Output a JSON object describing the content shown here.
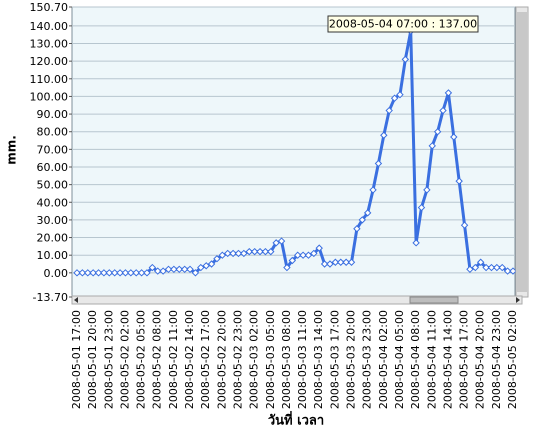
{
  "chart_data": {
    "type": "line",
    "annotation": "2008-05-04 07:00 : 137.00",
    "y_label": "mm.",
    "x_label": "วันที่ เวลา",
    "categories": [
      "2008-05-01 17:00",
      null,
      null,
      "2008-05-01 20:00",
      null,
      null,
      "2008-05-01 23:00",
      null,
      null,
      "2008-05-02 02:00",
      null,
      null,
      "2008-05-02 05:00",
      null,
      null,
      "2008-05-02 08:00",
      null,
      null,
      "2008-05-02 11:00",
      null,
      null,
      "2008-05-02 14:00",
      null,
      null,
      "2008-05-02 17:00",
      null,
      null,
      "2008-05-02 20:00",
      null,
      null,
      "2008-05-02 23:00",
      null,
      null,
      "2008-05-03 02:00",
      null,
      null,
      "2008-05-03 05:00",
      null,
      null,
      "2008-05-03 08:00",
      null,
      null,
      "2008-05-03 11:00",
      null,
      null,
      "2008-05-03 14:00",
      null,
      null,
      "2008-05-03 17:00",
      null,
      null,
      "2008-05-03 20:00",
      null,
      null,
      "2008-05-03 23:00",
      null,
      null,
      "2008-05-04 02:00",
      null,
      null,
      "2008-05-04 05:00",
      null,
      null,
      "2008-05-04 08:00",
      null,
      null,
      "2008-05-04 11:00",
      null,
      null,
      "2008-05-04 14:00",
      null,
      null,
      "2008-05-04 17:00",
      null,
      null,
      "2008-05-04 20:00",
      null,
      null,
      "2008-05-04 23:00",
      null,
      null,
      "2008-05-05 02:00"
    ],
    "series": [
      {
        "color": "#3a6fe0",
        "values": [
          0,
          0,
          0,
          0,
          0,
          0,
          0,
          0,
          0,
          0,
          0,
          0,
          0,
          0,
          3,
          1,
          1,
          2,
          2,
          2,
          2,
          2,
          0,
          3,
          4,
          5,
          8,
          10,
          11,
          11,
          11,
          11,
          12,
          12,
          12,
          12,
          12,
          17,
          18,
          3,
          7,
          10,
          10,
          10,
          11,
          14,
          5,
          5,
          6,
          6,
          6,
          6,
          25,
          30,
          34,
          47,
          62,
          78,
          92,
          99,
          101,
          121,
          137,
          17,
          37,
          47,
          72,
          80,
          92,
          102,
          77,
          52,
          27,
          2,
          3,
          6,
          3,
          3,
          3,
          3,
          1,
          1
        ]
      }
    ],
    "ylim": [
      -13.7,
      150.7
    ],
    "yticks": [
      {
        "value": 150.7,
        "label": "150.70"
      },
      {
        "value": 140,
        "label": "140.00"
      },
      {
        "value": 130,
        "label": "130.00"
      },
      {
        "value": 120,
        "label": "120.00"
      },
      {
        "value": 110,
        "label": "110.00"
      },
      {
        "value": 100,
        "label": "100.00"
      },
      {
        "value": 90,
        "label": "90.00"
      },
      {
        "value": 80,
        "label": "80.00"
      },
      {
        "value": 70,
        "label": "70.00"
      },
      {
        "value": 60,
        "label": "60.00"
      },
      {
        "value": 50,
        "label": "50.00"
      },
      {
        "value": 40,
        "label": "40.00"
      },
      {
        "value": 30,
        "label": "30.00"
      },
      {
        "value": 20,
        "label": "20.00"
      },
      {
        "value": 10,
        "label": "10.00"
      },
      {
        "value": 0,
        "label": "0.00"
      },
      {
        "value": -13.7,
        "label": "-13.70"
      }
    ],
    "grid": true
  }
}
